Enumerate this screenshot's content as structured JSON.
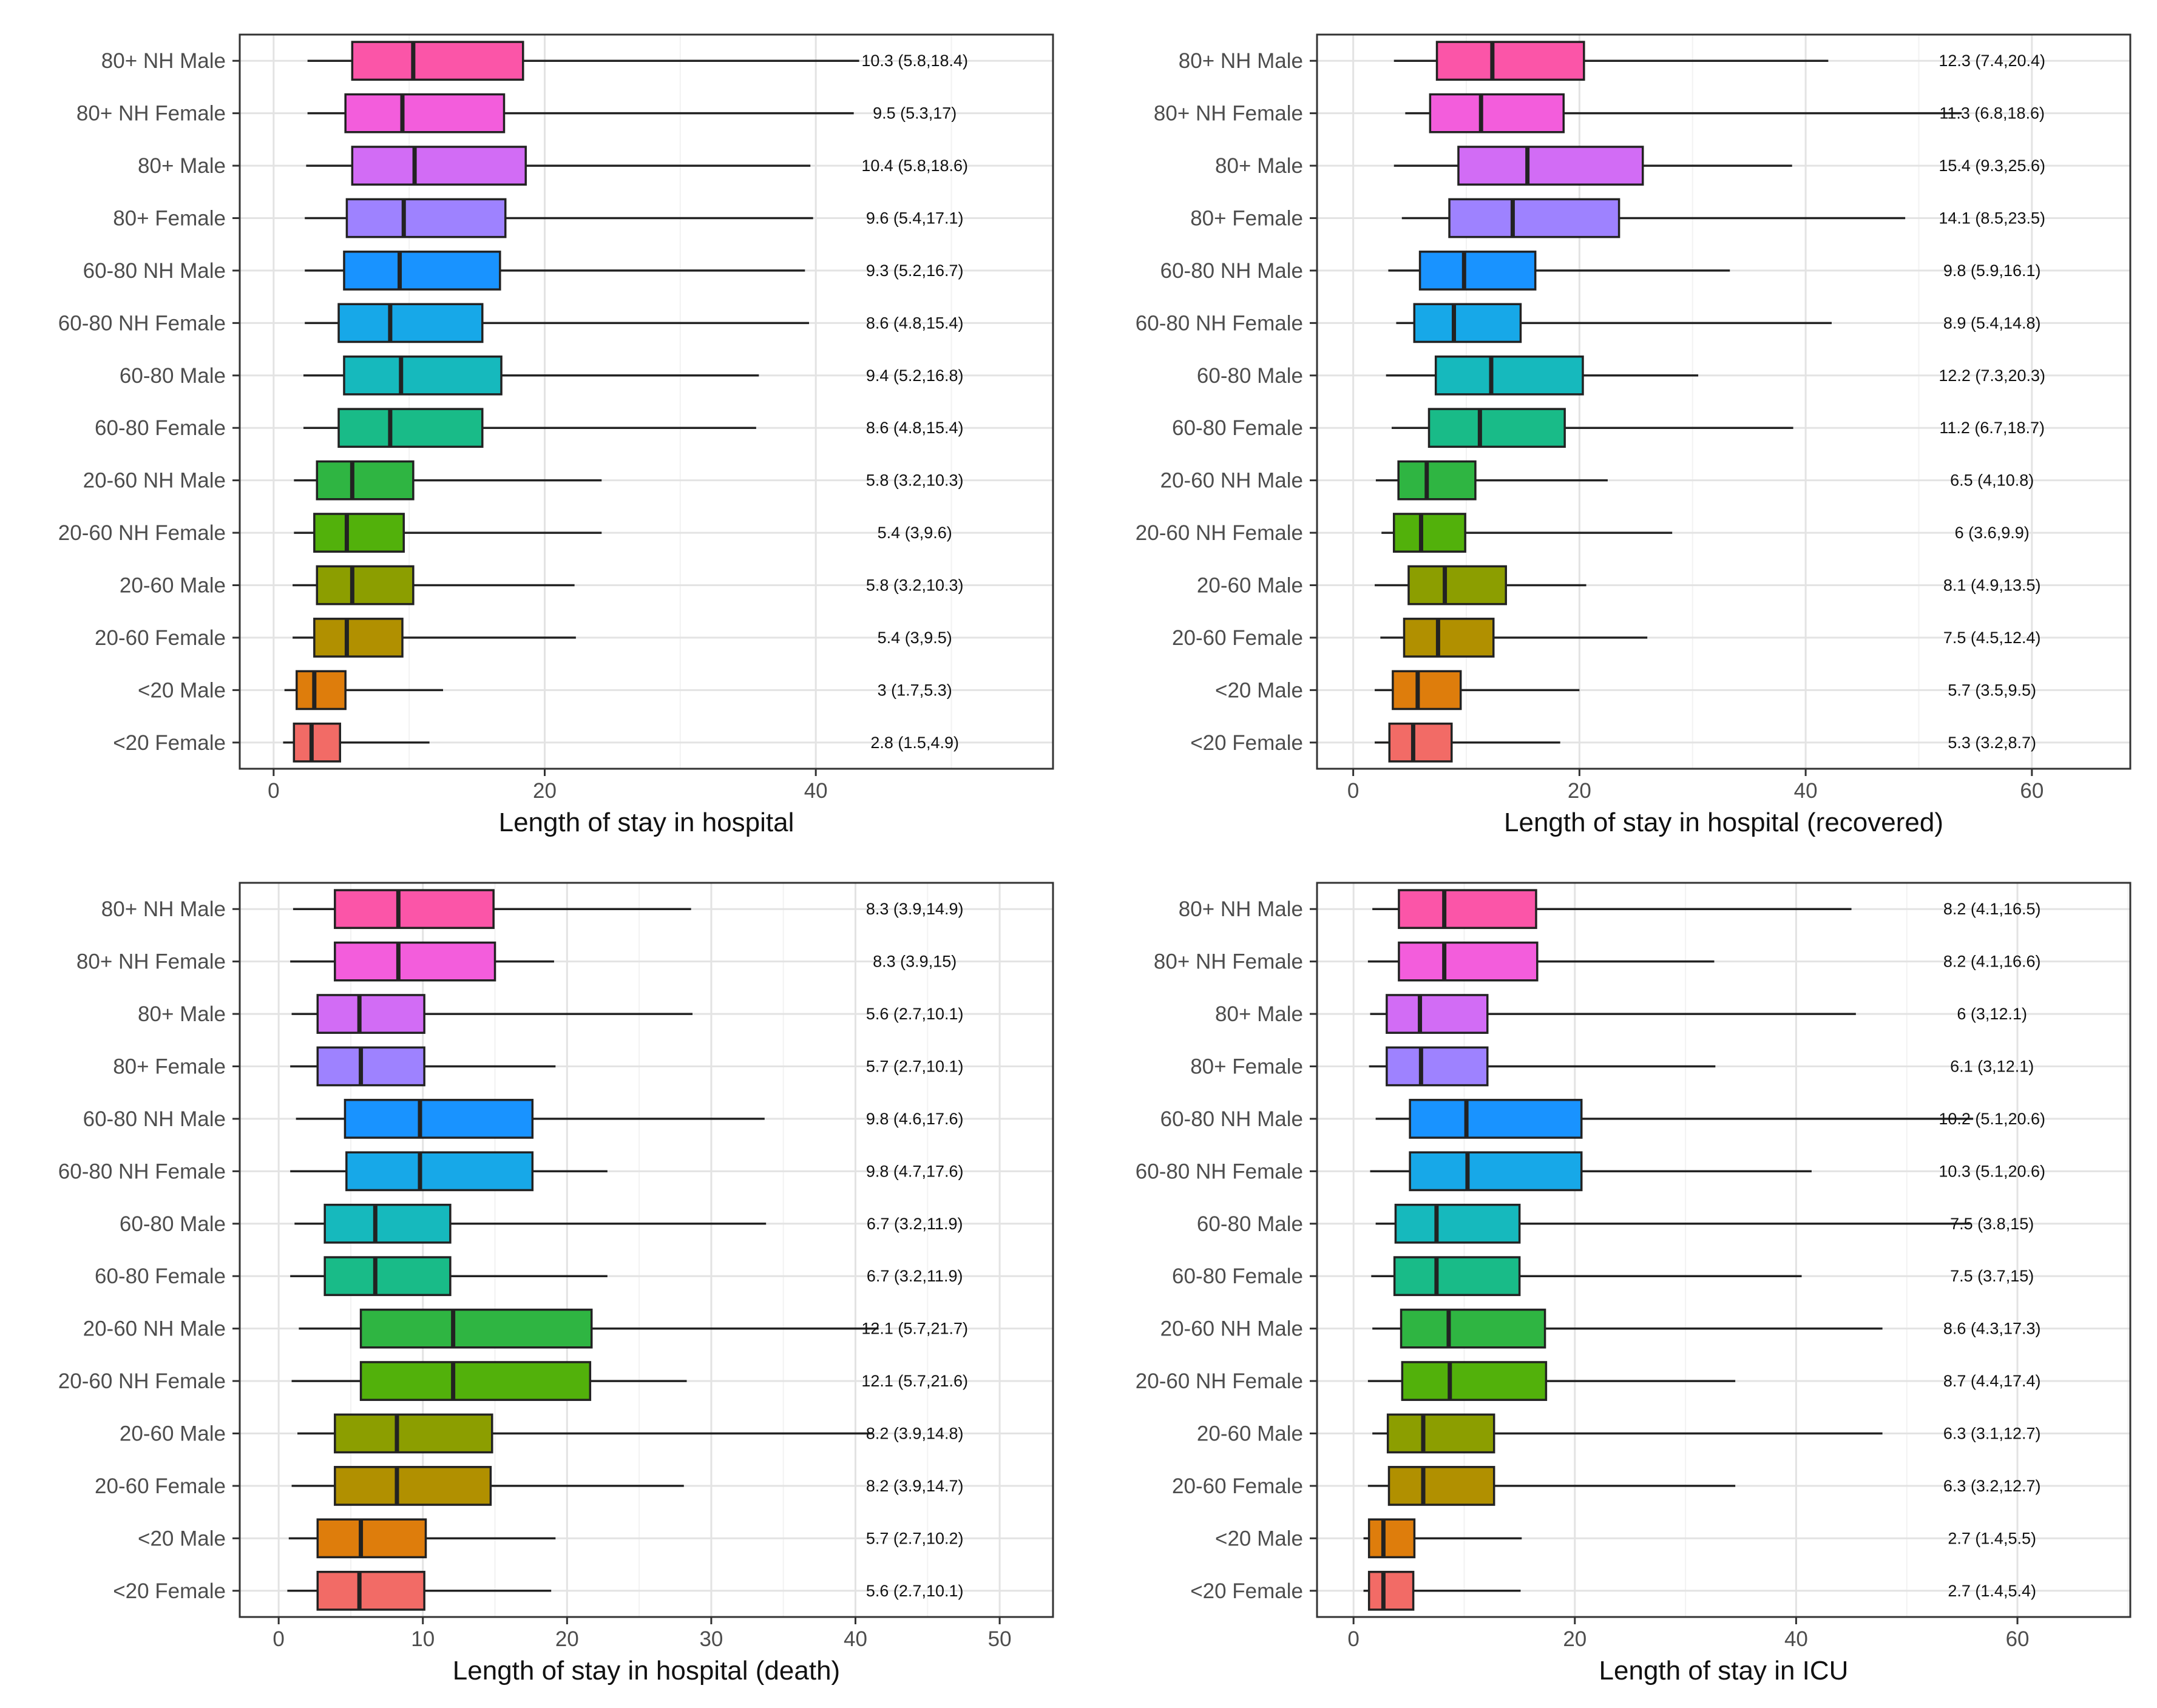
{
  "figure": {
    "categories": [
      "80+ NH Male",
      "80+ NH Female",
      "80+ Male",
      "80+ Female",
      "60-80 NH Male",
      "60-80 NH Female",
      "60-80 Male",
      "60-80 Female",
      "20-60 NH Male",
      "20-60 NH Female",
      "20-60 Male",
      "20-60 Female",
      "<20 Male",
      "<20 Female"
    ],
    "colors": [
      "#fb55a8",
      "#f35ddc",
      "#d26cf5",
      "#9e82ff",
      "#1993ff",
      "#17a8e8",
      "#16b9bd",
      "#19bb88",
      "#2fb542",
      "#52b10b",
      "#8c9e00",
      "#b19000",
      "#de7d0c",
      "#f26b66"
    ],
    "box_stroke": "#222222",
    "panel_border": "#333333",
    "grid_major": "#e3e3e3",
    "grid_minor": "#f2f2f2"
  },
  "chart_data": [
    {
      "type": "boxplot",
      "xlabel": "Length of stay in hospital",
      "xlim": [
        -2.5,
        57.5
      ],
      "xticks": [
        0,
        20,
        40
      ],
      "xtick_labels": [
        "0",
        "20",
        "40"
      ],
      "grid": true,
      "boxes": [
        {
          "category": "80+ NH Male",
          "whisker_low": 2.5,
          "q1": 5.8,
          "median": 10.3,
          "q3": 18.4,
          "whisker_high": 43.2,
          "label": "10.3 (5.8,18.4)"
        },
        {
          "category": "80+ NH Female",
          "whisker_low": 2.5,
          "q1": 5.3,
          "median": 9.5,
          "q3": 17.0,
          "whisker_high": 42.8,
          "label": "9.5 (5.3,17)"
        },
        {
          "category": "80+ Male",
          "whisker_low": 2.4,
          "q1": 5.8,
          "median": 10.4,
          "q3": 18.6,
          "whisker_high": 39.6,
          "label": "10.4 (5.8,18.6)"
        },
        {
          "category": "80+ Female",
          "whisker_low": 2.3,
          "q1": 5.4,
          "median": 9.6,
          "q3": 17.1,
          "whisker_high": 39.8,
          "label": "9.6 (5.4,17.1)"
        },
        {
          "category": "60-80 NH Male",
          "whisker_low": 2.3,
          "q1": 5.2,
          "median": 9.3,
          "q3": 16.7,
          "whisker_high": 39.2,
          "label": "9.3 (5.2,16.7)"
        },
        {
          "category": "60-80 NH Female",
          "whisker_low": 2.3,
          "q1": 4.8,
          "median": 8.6,
          "q3": 15.4,
          "whisker_high": 39.5,
          "label": "8.6 (4.8,15.4)"
        },
        {
          "category": "60-80 Male",
          "whisker_low": 2.2,
          "q1": 5.2,
          "median": 9.4,
          "q3": 16.8,
          "whisker_high": 35.8,
          "label": "9.4 (5.2,16.8)"
        },
        {
          "category": "60-80 Female",
          "whisker_low": 2.2,
          "q1": 4.8,
          "median": 8.6,
          "q3": 15.4,
          "whisker_high": 35.6,
          "label": "8.6 (4.8,15.4)"
        },
        {
          "category": "20-60 NH Male",
          "whisker_low": 1.5,
          "q1": 3.2,
          "median": 5.8,
          "q3": 10.3,
          "whisker_high": 24.2,
          "label": "5.8 (3.2,10.3)"
        },
        {
          "category": "20-60 NH Female",
          "whisker_low": 1.5,
          "q1": 3.0,
          "median": 5.4,
          "q3": 9.6,
          "whisker_high": 24.2,
          "label": "5.4 (3,9.6)"
        },
        {
          "category": "20-60 Male",
          "whisker_low": 1.4,
          "q1": 3.2,
          "median": 5.8,
          "q3": 10.3,
          "whisker_high": 22.2,
          "label": "5.8 (3.2,10.3)"
        },
        {
          "category": "20-60 Female",
          "whisker_low": 1.4,
          "q1": 3.0,
          "median": 5.4,
          "q3": 9.5,
          "whisker_high": 22.3,
          "label": "5.4 (3,9.5)"
        },
        {
          "category": "<20 Male",
          "whisker_low": 0.8,
          "q1": 1.7,
          "median": 3.0,
          "q3": 5.3,
          "whisker_high": 12.5,
          "label": "3 (1.7,5.3)"
        },
        {
          "category": "<20 Female",
          "whisker_low": 0.7,
          "q1": 1.5,
          "median": 2.8,
          "q3": 4.9,
          "whisker_high": 11.5,
          "label": "2.8 (1.5,4.9)"
        }
      ]
    },
    {
      "type": "boxplot",
      "xlabel": "Length of stay in hospital (recovered)",
      "xlim": [
        -3.2,
        68.7
      ],
      "xticks": [
        0,
        20,
        40,
        60
      ],
      "xtick_labels": [
        "0",
        "20",
        "40",
        "60"
      ],
      "grid": true,
      "boxes": [
        {
          "category": "80+ NH Male",
          "whisker_low": 3.6,
          "q1": 7.4,
          "median": 12.3,
          "q3": 20.4,
          "whisker_high": 42.0,
          "label": "12.3 (7.4,20.4)"
        },
        {
          "category": "80+ NH Female",
          "whisker_low": 4.6,
          "q1": 6.8,
          "median": 11.3,
          "q3": 18.6,
          "whisker_high": 53.8,
          "label": "11.3 (6.8,18.6)"
        },
        {
          "category": "80+ Male",
          "whisker_low": 3.6,
          "q1": 9.3,
          "median": 15.4,
          "q3": 25.6,
          "whisker_high": 38.8,
          "label": "15.4 (9.3,25.6)"
        },
        {
          "category": "80+ Female",
          "whisker_low": 4.3,
          "q1": 8.5,
          "median": 14.1,
          "q3": 23.5,
          "whisker_high": 48.8,
          "label": "14.1 (8.5,23.5)"
        },
        {
          "category": "60-80 NH Male",
          "whisker_low": 3.1,
          "q1": 5.9,
          "median": 9.8,
          "q3": 16.1,
          "whisker_high": 33.3,
          "label": "9.8 (5.9,16.1)"
        },
        {
          "category": "60-80 NH Female",
          "whisker_low": 3.8,
          "q1": 5.4,
          "median": 8.9,
          "q3": 14.8,
          "whisker_high": 42.3,
          "label": "8.9 (5.4,14.8)"
        },
        {
          "category": "60-80 Male",
          "whisker_low": 2.9,
          "q1": 7.3,
          "median": 12.2,
          "q3": 20.3,
          "whisker_high": 30.5,
          "label": "12.2 (7.3,20.3)"
        },
        {
          "category": "60-80 Female",
          "whisker_low": 3.4,
          "q1": 6.7,
          "median": 11.2,
          "q3": 18.7,
          "whisker_high": 38.9,
          "label": "11.2 (6.7,18.7)"
        },
        {
          "category": "20-60 NH Male",
          "whisker_low": 2.0,
          "q1": 4.0,
          "median": 6.5,
          "q3": 10.8,
          "whisker_high": 22.5,
          "label": "6.5 (4,10.8)"
        },
        {
          "category": "20-60 NH Female",
          "whisker_low": 2.5,
          "q1": 3.6,
          "median": 6.0,
          "q3": 9.9,
          "whisker_high": 28.2,
          "label": "6 (3.6,9.9)"
        },
        {
          "category": "20-60 Male",
          "whisker_low": 1.9,
          "q1": 4.9,
          "median": 8.1,
          "q3": 13.5,
          "whisker_high": 20.6,
          "label": "8.1 (4.9,13.5)"
        },
        {
          "category": "20-60 Female",
          "whisker_low": 2.4,
          "q1": 4.5,
          "median": 7.5,
          "q3": 12.4,
          "whisker_high": 26.0,
          "label": "7.5 (4.5,12.4)"
        },
        {
          "category": "<20 Male",
          "whisker_low": 1.9,
          "q1": 3.5,
          "median": 5.7,
          "q3": 9.5,
          "whisker_high": 20.0,
          "label": "5.7 (3.5,9.5)"
        },
        {
          "category": "<20 Female",
          "whisker_low": 1.9,
          "q1": 3.2,
          "median": 5.3,
          "q3": 8.7,
          "whisker_high": 18.3,
          "label": "5.3 (3.2,8.7)"
        }
      ]
    },
    {
      "type": "boxplot",
      "xlabel": "Length of stay in hospital (death)",
      "xlim": [
        -2.7,
        53.7
      ],
      "xticks": [
        0,
        10,
        20,
        30,
        40,
        50
      ],
      "xtick_labels": [
        "0",
        "10",
        "20",
        "30",
        "40",
        "50"
      ],
      "grid": true,
      "boxes": [
        {
          "category": "80+ NH Male",
          "whisker_low": 1.0,
          "q1": 3.9,
          "median": 8.3,
          "q3": 14.9,
          "whisker_high": 28.6,
          "label": "8.3 (3.9,14.9)"
        },
        {
          "category": "80+ NH Female",
          "whisker_low": 0.8,
          "q1": 3.9,
          "median": 8.3,
          "q3": 15.0,
          "whisker_high": 19.1,
          "label": "8.3 (3.9,15)"
        },
        {
          "category": "80+ Male",
          "whisker_low": 0.9,
          "q1": 2.7,
          "median": 5.6,
          "q3": 10.1,
          "whisker_high": 28.7,
          "label": "5.6 (2.7,10.1)"
        },
        {
          "category": "80+ Female",
          "whisker_low": 0.8,
          "q1": 2.7,
          "median": 5.7,
          "q3": 10.1,
          "whisker_high": 19.2,
          "label": "5.7 (2.7,10.1)"
        },
        {
          "category": "60-80 NH Male",
          "whisker_low": 1.2,
          "q1": 4.6,
          "median": 9.8,
          "q3": 17.6,
          "whisker_high": 33.7,
          "label": "9.8 (4.6,17.6)"
        },
        {
          "category": "60-80 NH Female",
          "whisker_low": 0.8,
          "q1": 4.7,
          "median": 9.8,
          "q3": 17.6,
          "whisker_high": 22.8,
          "label": "9.8 (4.7,17.6)"
        },
        {
          "category": "60-80 Male",
          "whisker_low": 1.1,
          "q1": 3.2,
          "median": 6.7,
          "q3": 11.9,
          "whisker_high": 33.8,
          "label": "6.7 (3.2,11.9)"
        },
        {
          "category": "60-80 Female",
          "whisker_low": 0.8,
          "q1": 3.2,
          "median": 6.7,
          "q3": 11.9,
          "whisker_high": 22.8,
          "label": "6.7 (3.2,11.9)"
        },
        {
          "category": "20-60 NH Male",
          "whisker_low": 1.4,
          "q1": 5.7,
          "median": 12.1,
          "q3": 21.7,
          "whisker_high": 41.6,
          "label": "12.1 (5.7,21.7)"
        },
        {
          "category": "20-60 NH Female",
          "whisker_low": 0.9,
          "q1": 5.7,
          "median": 12.1,
          "q3": 21.6,
          "whisker_high": 28.3,
          "label": "12.1 (5.7,21.6)"
        },
        {
          "category": "20-60 Male",
          "whisker_low": 1.3,
          "q1": 3.9,
          "median": 8.2,
          "q3": 14.8,
          "whisker_high": 41.2,
          "label": "8.2 (3.9,14.8)"
        },
        {
          "category": "20-60 Female",
          "whisker_low": 0.9,
          "q1": 3.9,
          "median": 8.2,
          "q3": 14.7,
          "whisker_high": 28.1,
          "label": "8.2 (3.9,14.7)"
        },
        {
          "category": "<20 Male",
          "whisker_low": 0.7,
          "q1": 2.7,
          "median": 5.7,
          "q3": 10.2,
          "whisker_high": 19.2,
          "label": "5.7 (2.7,10.2)"
        },
        {
          "category": "<20 Female",
          "whisker_low": 0.6,
          "q1": 2.7,
          "median": 5.6,
          "q3": 10.1,
          "whisker_high": 18.9,
          "label": "5.6 (2.7,10.1)"
        }
      ]
    },
    {
      "type": "boxplot",
      "xlabel": "Length of stay in ICU",
      "xlim": [
        -3.3,
        70.2
      ],
      "xticks": [
        0,
        20,
        40,
        60
      ],
      "xtick_labels": [
        "0",
        "20",
        "40",
        "60"
      ],
      "grid": true,
      "boxes": [
        {
          "category": "80+ NH Male",
          "whisker_low": 1.7,
          "q1": 4.1,
          "median": 8.2,
          "q3": 16.5,
          "whisker_high": 45.0,
          "label": "8.2 (4.1,16.5)"
        },
        {
          "category": "80+ NH Female",
          "whisker_low": 1.3,
          "q1": 4.1,
          "median": 8.2,
          "q3": 16.6,
          "whisker_high": 32.6,
          "label": "8.2 (4.1,16.6)"
        },
        {
          "category": "80+ Male",
          "whisker_low": 1.5,
          "q1": 3.0,
          "median": 6.0,
          "q3": 12.1,
          "whisker_high": 45.4,
          "label": "6 (3,12.1)"
        },
        {
          "category": "80+ Female",
          "whisker_low": 1.4,
          "q1": 3.0,
          "median": 6.1,
          "q3": 12.1,
          "whisker_high": 32.7,
          "label": "6.1 (3,12.1)"
        },
        {
          "category": "60-80 NH Male",
          "whisker_low": 2.0,
          "q1": 5.1,
          "median": 10.2,
          "q3": 20.6,
          "whisker_high": 56.0,
          "label": "10.2 (5.1,20.6)"
        },
        {
          "category": "60-80 NH Female",
          "whisker_low": 1.5,
          "q1": 5.1,
          "median": 10.3,
          "q3": 20.6,
          "whisker_high": 41.4,
          "label": "10.3 (5.1,20.6)"
        },
        {
          "category": "60-80 Male",
          "whisker_low": 2.0,
          "q1": 3.8,
          "median": 7.5,
          "q3": 15.0,
          "whisker_high": 55.7,
          "label": "7.5 (3.8,15)"
        },
        {
          "category": "60-80 Female",
          "whisker_low": 1.6,
          "q1": 3.7,
          "median": 7.5,
          "q3": 15.0,
          "whisker_high": 40.5,
          "label": "7.5 (3.7,15)"
        },
        {
          "category": "20-60 NH Male",
          "whisker_low": 1.7,
          "q1": 4.3,
          "median": 8.6,
          "q3": 17.3,
          "whisker_high": 47.8,
          "label": "8.6 (4.3,17.3)"
        },
        {
          "category": "20-60 NH Female",
          "whisker_low": 1.3,
          "q1": 4.4,
          "median": 8.7,
          "q3": 17.4,
          "whisker_high": 34.5,
          "label": "8.7 (4.4,17.4)"
        },
        {
          "category": "20-60 Male",
          "whisker_low": 1.7,
          "q1": 3.1,
          "median": 6.3,
          "q3": 12.7,
          "whisker_high": 47.8,
          "label": "6.3 (3.1,12.7)"
        },
        {
          "category": "20-60 Female",
          "whisker_low": 1.3,
          "q1": 3.2,
          "median": 6.3,
          "q3": 12.7,
          "whisker_high": 34.5,
          "label": "6.3 (3.2,12.7)"
        },
        {
          "category": "<20 Male",
          "whisker_low": 0.9,
          "q1": 1.4,
          "median": 2.7,
          "q3": 5.5,
          "whisker_high": 15.2,
          "label": "2.7 (1.4,5.5)"
        },
        {
          "category": "<20 Female",
          "whisker_low": 0.9,
          "q1": 1.4,
          "median": 2.7,
          "q3": 5.4,
          "whisker_high": 15.1,
          "label": "2.7 (1.4,5.4)"
        }
      ]
    }
  ]
}
